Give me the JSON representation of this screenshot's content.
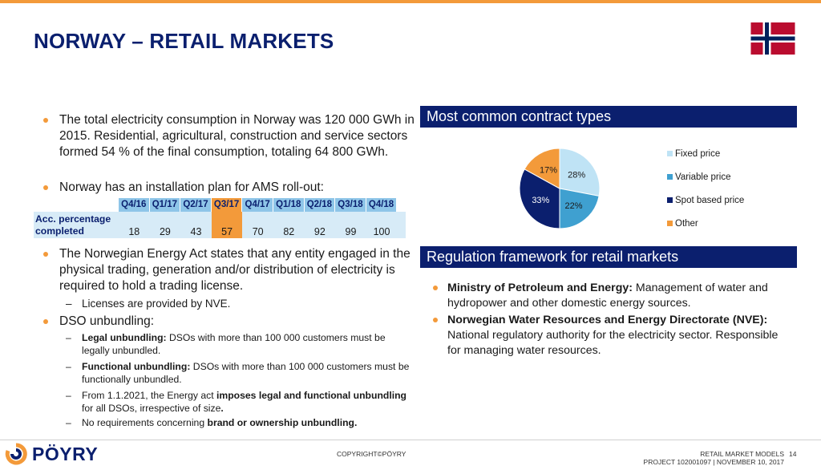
{
  "title": "NORWAY – RETAIL MARKETS",
  "colors": {
    "navy": "#0b1f6e",
    "orange": "#f39a3a",
    "lightblue": "#8ec5e8",
    "midblue": "#3fa0d0"
  },
  "bullets": {
    "b1": "The total electricity consumption in Norway was 120 000 GWh in 2015. Residential, agricultural, construction and service sectors formed 54 % of the final consumption, totaling  64 800 GWh.",
    "b2": "Norway has an installation plan for AMS roll-out:",
    "b3": "The Norwegian Energy Act states that any entity engaged in the physical trading, generation and/or distribution of electricity is required to hold a trading license.",
    "b3_sub": "Licenses are provided by NVE.",
    "b4": "DSO unbundling:",
    "sub1_bold": "Legal unbundling:",
    "sub1_rest": " DSOs with more than 100 000 customers must be legally unbundled.",
    "sub2_bold": "Functional unbundling:",
    "sub2_rest": " DSOs with more than 100 000 customers must be functionally unbundled.",
    "sub3_pre": "From 1.1.2021, the Energy act ",
    "sub3_bold": "imposes legal and functional unbundling",
    "sub3_mid": " for all DSOs, irrespective of size",
    "sub3_bold2": ".",
    "sub4_pre": "No requirements concerning ",
    "sub4_bold": "brand or ownership unbundling."
  },
  "ams": {
    "row_label": "Acc. percentage completed",
    "quarters": [
      "Q4/16",
      "Q1/17",
      "Q2/17",
      "Q3/17",
      "Q4/17",
      "Q1/18",
      "Q2/18",
      "Q3/18",
      "Q4/18"
    ],
    "values": [
      "18",
      "29",
      "43",
      "57",
      "70",
      "82",
      "92",
      "99",
      "100"
    ],
    "highlight_index": 3
  },
  "contracts_heading": "Most common contract types",
  "chart_data": {
    "type": "pie",
    "title": "Most common contract types",
    "categories": [
      "Fixed price",
      "Variable price",
      "Spot based price",
      "Other"
    ],
    "values": [
      28,
      22,
      33,
      17
    ],
    "labels": [
      "28%",
      "22%",
      "33%",
      "17%"
    ],
    "colors": [
      "#bfe3f5",
      "#3fa0d0",
      "#0b1f6e",
      "#f39a3a"
    ]
  },
  "regulation": {
    "heading": "Regulation framework for retail markets",
    "r1_bold": "Ministry of Petroleum and Energy:",
    "r1_rest": " Management of water and hydropower and other domestic energy sources.",
    "r2_bold": "Norwegian Water Resources and Energy Directorate (NVE):",
    "r2_rest": " National regulatory authority for the electricity sector. Responsible for managing water resources."
  },
  "footer": {
    "logo": "PÖYRY",
    "copyright": "COPYRIGHT©PÖYRY",
    "doc_title": "RETAIL MARKET MODELS",
    "project": "PROJECT 102001097  |  NOVEMBER 10, 2017",
    "page": "14"
  }
}
